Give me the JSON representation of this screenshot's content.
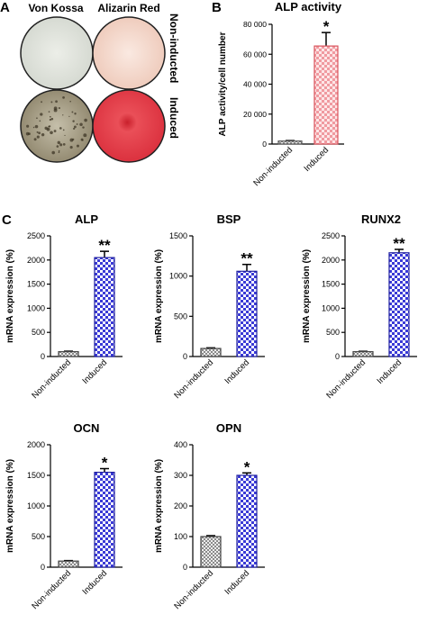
{
  "panels": {
    "a": {
      "letter": "A",
      "col_labels": [
        "Von Kossa",
        "Alizarin Red"
      ],
      "row_labels": [
        "Non-inducted",
        "Induced"
      ]
    },
    "b": {
      "letter": "B"
    },
    "c": {
      "letter": "C"
    }
  },
  "colors": {
    "noninduced_fill": "#d0d0d0",
    "alp_b_induced": "#f2b8bc",
    "blue_check": "#3a3ad6",
    "plate_vonkossa_top": "#e3e6df",
    "plate_alizarin_top": "#f6ddd2",
    "plate_vonkossa_bottom": "#b1aa93",
    "plate_alizarin_bottom": "#e0404a"
  },
  "chart_data": [
    {
      "id": "b",
      "type": "bar",
      "title": "ALP activity",
      "ylabel": "ALP activity/cell number",
      "categories": [
        "Non-inducted",
        "Induced"
      ],
      "values": [
        2000,
        65500
      ],
      "errors": [
        300,
        9000
      ],
      "sig": [
        "",
        "*"
      ],
      "ylim": [
        0,
        80000
      ],
      "yticks": [
        "0",
        "20 000",
        "40 000",
        "60 000",
        "80 000"
      ],
      "ytick_values": [
        0,
        20000,
        40000,
        60000,
        80000
      ]
    },
    {
      "id": "alp",
      "type": "bar",
      "title": "ALP",
      "ylabel": "mRNA expression (%)",
      "categories": [
        "Non-inducted",
        "Induced"
      ],
      "values": [
        100,
        2050
      ],
      "errors": [
        10,
        130
      ],
      "sig": [
        "",
        "**"
      ],
      "ylim": [
        0,
        2500
      ],
      "yticks": [
        "0",
        "500",
        "1000",
        "1500",
        "2000",
        "2500"
      ],
      "ytick_values": [
        0,
        500,
        1000,
        1500,
        2000,
        2500
      ]
    },
    {
      "id": "bsp",
      "type": "bar",
      "title": "BSP",
      "ylabel": "mRNA expression (%)",
      "categories": [
        "Non-inducted",
        "Induced"
      ],
      "values": [
        100,
        1060
      ],
      "errors": [
        8,
        85
      ],
      "sig": [
        "",
        "**"
      ],
      "ylim": [
        0,
        1500
      ],
      "yticks": [
        "0",
        "500",
        "1000",
        "1500"
      ],
      "ytick_values": [
        0,
        500,
        1000,
        1500
      ]
    },
    {
      "id": "runx2",
      "type": "bar",
      "title": "RUNX2",
      "ylabel": "mRNA expression (%)",
      "categories": [
        "Non-inducted",
        "Induced"
      ],
      "values": [
        100,
        2150
      ],
      "errors": [
        8,
        70
      ],
      "sig": [
        "",
        "**"
      ],
      "ylim": [
        0,
        2500
      ],
      "yticks": [
        "0",
        "500",
        "1000",
        "1500",
        "2000",
        "2500"
      ],
      "ytick_values": [
        0,
        500,
        1000,
        1500,
        2000,
        2500
      ]
    },
    {
      "id": "ocn",
      "type": "bar",
      "title": "OCN",
      "ylabel": "mRNA expression (%)",
      "categories": [
        "Non-inducted",
        "Induced"
      ],
      "values": [
        100,
        1550
      ],
      "errors": [
        8,
        60
      ],
      "sig": [
        "",
        "*"
      ],
      "ylim": [
        0,
        2000
      ],
      "yticks": [
        "0",
        "500",
        "1000",
        "1500",
        "2000"
      ],
      "ytick_values": [
        0,
        500,
        1000,
        1500,
        2000
      ]
    },
    {
      "id": "opn",
      "type": "bar",
      "title": "OPN",
      "ylabel": "mRNA expression (%)",
      "categories": [
        "Non-inducted",
        "Induced"
      ],
      "values": [
        100,
        300
      ],
      "errors": [
        3,
        8
      ],
      "sig": [
        "",
        "*"
      ],
      "ylim": [
        0,
        400
      ],
      "yticks": [
        "0",
        "100",
        "200",
        "300",
        "400"
      ],
      "ytick_values": [
        0,
        100,
        200,
        300,
        400
      ]
    }
  ]
}
